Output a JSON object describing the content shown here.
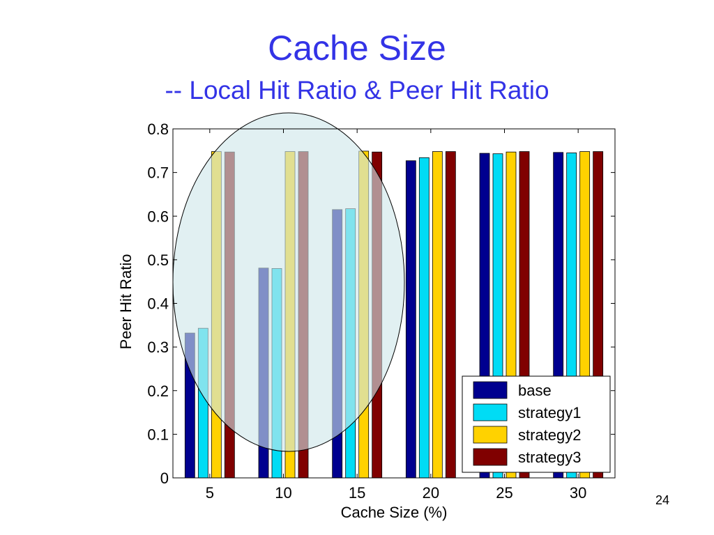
{
  "slide": {
    "title": "Cache Size",
    "subtitle": "-- Local Hit Ratio & Peer Hit Ratio",
    "page_number": "24"
  },
  "colors": {
    "title": "#3333e6",
    "highlight_fill": "#cfe6ea"
  },
  "chart_data": {
    "type": "bar",
    "categories": [
      "5",
      "10",
      "15",
      "20",
      "25",
      "30"
    ],
    "series": [
      {
        "name": "base",
        "color": "#00008f",
        "values": [
          0.332,
          0.481,
          0.615,
          0.727,
          0.744,
          0.746
        ]
      },
      {
        "name": "strategy1",
        "color": "#00dcf5",
        "values": [
          0.343,
          0.48,
          0.617,
          0.734,
          0.743,
          0.745
        ]
      },
      {
        "name": "strategy2",
        "color": "#ffd200",
        "values": [
          0.748,
          0.748,
          0.749,
          0.748,
          0.747,
          0.748
        ]
      },
      {
        "name": "strategy3",
        "color": "#800000",
        "values": [
          0.747,
          0.748,
          0.747,
          0.748,
          0.748,
          0.748
        ]
      }
    ],
    "ylim": [
      0,
      0.8
    ],
    "yticks": [
      "0",
      "0.1",
      "0.2",
      "0.3",
      "0.4",
      "0.5",
      "0.6",
      "0.7",
      "0.8"
    ],
    "xlabel": "Cache Size (%)",
    "ylabel": "Peer Hit Ratio",
    "ylabel_hidden": "Local Hit Ratio",
    "legend": "bottom-right",
    "annotation": "ellipse highlighting cache sizes 5, 10, 15"
  }
}
